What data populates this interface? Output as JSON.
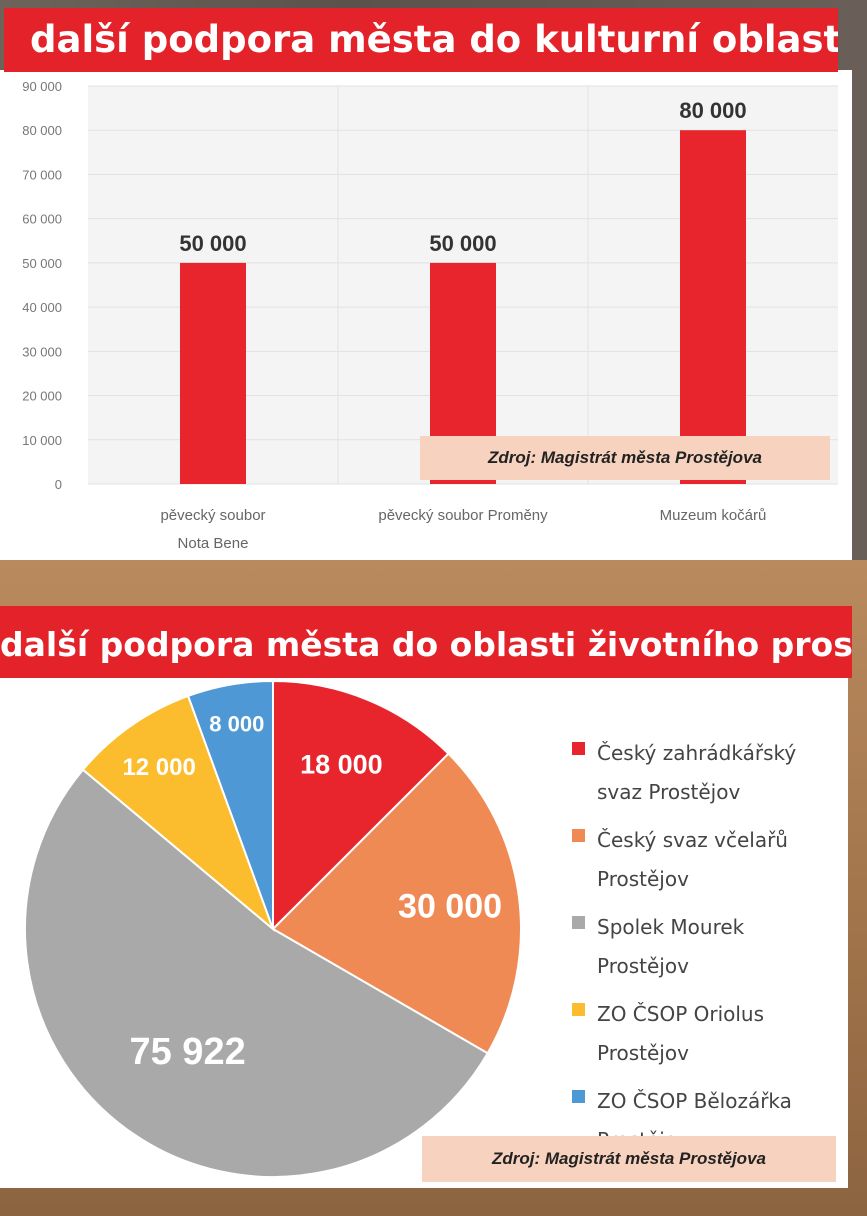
{
  "colors": {
    "title_red": "#e3222a",
    "bar_red": "#e8252c",
    "source_bg": "#f7d3bf"
  },
  "chart_data": [
    {
      "type": "bar",
      "title": "další podpora města do kulturní oblasti",
      "categories": [
        "pěvecký soubor Nota Bene",
        "pěvecký soubor Proměny",
        "Muzeum kočárů"
      ],
      "category_lines": [
        [
          "pěvecký soubor",
          "Nota Bene"
        ],
        [
          "pěvecký soubor Proměny"
        ],
        [
          "Muzeum kočárů"
        ]
      ],
      "values": [
        50000,
        50000,
        80000
      ],
      "data_labels": [
        "50 000",
        "50 000",
        "80 000"
      ],
      "yticks": [
        0,
        10000,
        20000,
        30000,
        40000,
        50000,
        60000,
        70000,
        80000,
        90000
      ],
      "ytick_labels": [
        "0",
        "10 000",
        "20 000",
        "30 000",
        "40 000",
        "50 000",
        "60 000",
        "70 000",
        "80 000",
        "90 000"
      ],
      "ylim": [
        0,
        90000
      ],
      "grid": true,
      "source": "Zdroj: Magistrát města Prostějova"
    },
    {
      "type": "pie",
      "title": "další podpora města do oblasti životního prostředí",
      "labels": [
        "Český zahrádkářský svaz Prostějov",
        "Český svaz včelařů Prostějov",
        "Spolek Mourek Prostějov",
        "ZO ČSOP Oriolus Prostějov",
        "ZO ČSOP Bělozářka Prostějov"
      ],
      "legend_lines": [
        [
          "Český zahrádkářský",
          "svaz Prostějov"
        ],
        [
          "Český svaz včelařů",
          "Prostějov"
        ],
        [
          "Spolek Mourek",
          "Prostějov"
        ],
        [
          "ZO ČSOP Oriolus",
          "Prostějov"
        ],
        [
          "ZO ČSOP Bělozářka",
          "Prostějov"
        ]
      ],
      "values": [
        18000,
        30000,
        75922,
        12000,
        8000
      ],
      "data_labels": [
        "18 000",
        "30 000",
        "75 922",
        "12 000",
        "8 000"
      ],
      "colors": [
        "#e8252c",
        "#f08a55",
        "#a9a9a9",
        "#fbbd2e",
        "#4f98d6"
      ],
      "legend_position": "right",
      "source": "Zdroj: Magistrát města Prostějova"
    }
  ]
}
